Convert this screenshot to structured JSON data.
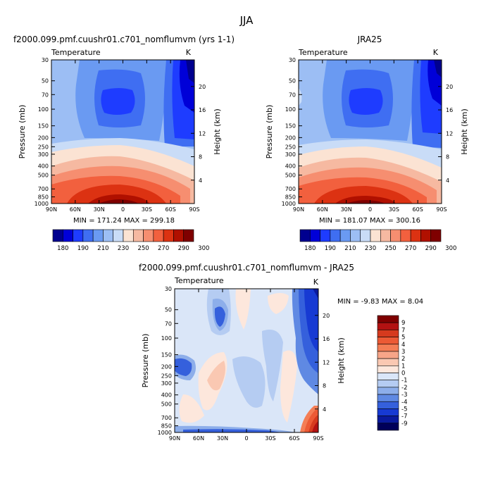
{
  "figure": {
    "title": "JJA"
  },
  "chart_data": [
    {
      "type": "heatmap",
      "id": "panel-model",
      "title": "f2000.099.pmf.cuushr01.c701_nomflumvm (yrs 1-1)",
      "subtitle": "Temperature",
      "units": "K",
      "ylabel": "Pressure (mb)",
      "ylabel_right": "Height (km)",
      "x_ticks": [
        "90N",
        "60N",
        "30N",
        "0",
        "30S",
        "60S",
        "90S"
      ],
      "y_ticks": [
        "30",
        "50",
        "70",
        "100",
        "150",
        "200",
        "250",
        "300",
        "400",
        "500",
        "700",
        "850",
        "1000"
      ],
      "y_ticks_right": [
        "20",
        "16",
        "12",
        "8",
        "4"
      ],
      "min_max_text": "MIN = 171.24   MAX = 299.18",
      "stats": {
        "min": 171.24,
        "max": 299.18
      },
      "colorbar_labels": [
        "180",
        "190",
        "210",
        "230",
        "250",
        "270",
        "290",
        "300"
      ]
    },
    {
      "type": "heatmap",
      "id": "panel-obs",
      "title": "JRA25",
      "subtitle": "Temperature",
      "units": "K",
      "ylabel": "Pressure (mb)",
      "ylabel_right": "Height (km)",
      "x_ticks": [
        "90N",
        "60N",
        "30N",
        "0",
        "30S",
        "60S",
        "90S"
      ],
      "y_ticks": [
        "30",
        "50",
        "70",
        "100",
        "150",
        "200",
        "250",
        "300",
        "400",
        "500",
        "700",
        "850",
        "1000"
      ],
      "y_ticks_right": [
        "20",
        "16",
        "12",
        "8",
        "4"
      ],
      "min_max_text": "MIN = 181.07   MAX = 300.16",
      "stats": {
        "min": 181.07,
        "max": 300.16
      },
      "colorbar_labels": [
        "180",
        "190",
        "210",
        "230",
        "250",
        "270",
        "290",
        "300"
      ]
    },
    {
      "type": "heatmap",
      "id": "panel-diff",
      "title": "f2000.099.pmf.cuushr01.c701_nomflumvm - JRA25",
      "subtitle": "Temperature",
      "units": "K",
      "ylabel": "Pressure (mb)",
      "ylabel_right": "Height (km)",
      "x_ticks": [
        "90N",
        "60N",
        "30N",
        "0",
        "30S",
        "60S",
        "90S"
      ],
      "y_ticks": [
        "30",
        "50",
        "70",
        "100",
        "150",
        "200",
        "250",
        "300",
        "400",
        "500",
        "700",
        "850",
        "1000"
      ],
      "y_ticks_right": [
        "20",
        "16",
        "12",
        "8",
        "4"
      ],
      "min_max_text": "MIN =   -9.83   MAX =    8.04",
      "stats": {
        "min": -9.83,
        "max": 8.04
      },
      "colorbar_labels": [
        "9",
        "7",
        "5",
        "4",
        "3",
        "2",
        "1",
        "0",
        "-1",
        "-2",
        "-3",
        "-4",
        "-5",
        "-7",
        "-9"
      ]
    }
  ],
  "colorbars": {
    "abs_colors": [
      "#00008f",
      "#0000d8",
      "#1e3cff",
      "#3f6ef2",
      "#6a9af2",
      "#9cbef4",
      "#c9dcf7",
      "#fbe3d3",
      "#f6b9a1",
      "#f68e70",
      "#f2603e",
      "#dc3212",
      "#b01000",
      "#7f0000"
    ],
    "diff_colors": [
      "#7f0000",
      "#b31212",
      "#d63a1e",
      "#ec5a35",
      "#f47d55",
      "#f7a588",
      "#fac8b2",
      "#fde7dc",
      "#dae6f8",
      "#b5ccf2",
      "#8daeea",
      "#5f89e3",
      "#3560dc",
      "#173ad3",
      "#0a1a9e",
      "#00005a"
    ]
  }
}
